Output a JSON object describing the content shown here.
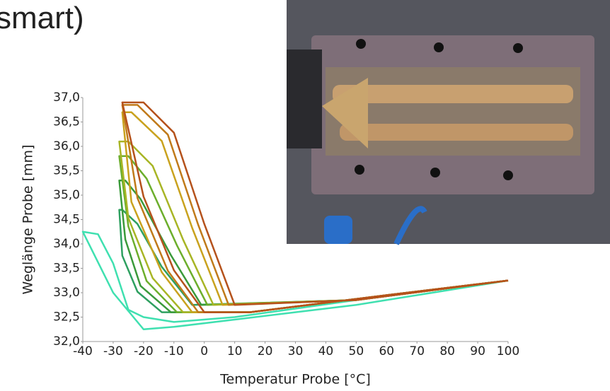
{
  "chart_data": {
    "type": "line",
    "title": "smart)",
    "xlabel": "Temperatur Probe [°C]",
    "ylabel": "Weglänge Probe [mm]",
    "xlim": [
      -40,
      100
    ],
    "xticks": [
      -40,
      -30,
      -20,
      -10,
      0,
      10,
      20,
      30,
      40,
      50,
      60,
      70,
      80,
      90,
      100
    ],
    "ylim": [
      32,
      37
    ],
    "yticks": [
      {
        "value": 32,
        "label": "32,0"
      },
      {
        "value": 32.5,
        "label": "32,5"
      },
      {
        "value": 33,
        "label": "33,0"
      },
      {
        "value": 33.5,
        "label": "33,5"
      },
      {
        "value": 34,
        "label": "34,0"
      },
      {
        "value": 34.5,
        "label": "34,5"
      },
      {
        "value": 35,
        "label": "35,0"
      },
      {
        "value": 35.5,
        "label": "35,5"
      },
      {
        "value": 36,
        "label": "36,0"
      },
      {
        "value": 36.5,
        "label": "36,5"
      },
      {
        "value": 37,
        "label": "37,0"
      }
    ],
    "series": [
      {
        "color": "#3fe0b0",
        "x": [
          100,
          50,
          10,
          -10,
          -20,
          -25,
          -30,
          -35,
          -40,
          -30,
          -20,
          -10,
          10,
          50,
          100
        ],
        "values": [
          33.25,
          32.85,
          32.5,
          32.4,
          32.5,
          32.65,
          33.6,
          34.2,
          34.25,
          33.0,
          32.25,
          32.3,
          32.45,
          32.75,
          33.25
        ]
      },
      {
        "color": "#2ea060",
        "x": [
          100,
          50,
          -4,
          -14,
          -22,
          -27,
          -28,
          -27,
          -22,
          -14,
          15,
          60,
          100
        ],
        "values": [
          33.25,
          32.85,
          32.75,
          33.53,
          34.41,
          34.7,
          34.7,
          33.76,
          33.02,
          32.6,
          32.6,
          32.95,
          33.25
        ]
      },
      {
        "color": "#3a9a3a",
        "x": [
          100,
          50,
          -1,
          -11,
          -21,
          -26,
          -28,
          -26,
          -21,
          -11,
          15,
          60,
          100
        ],
        "values": [
          33.25,
          32.85,
          32.75,
          33.77,
          34.92,
          35.3,
          35.3,
          34.09,
          33.14,
          32.6,
          32.6,
          32.95,
          33.25
        ]
      },
      {
        "color": "#6cae2c",
        "x": [
          100,
          50,
          1,
          -9,
          -19,
          -25,
          -28,
          -25,
          -19,
          -9,
          15,
          60,
          100
        ],
        "values": [
          33.25,
          32.85,
          32.75,
          33.97,
          35.34,
          35.8,
          35.8,
          34.36,
          33.24,
          32.6,
          32.6,
          32.95,
          33.25
        ]
      },
      {
        "color": "#a8b525",
        "x": [
          100,
          50,
          3,
          -7,
          -17,
          -25,
          -28,
          -25,
          -17,
          -7,
          15,
          60,
          100
        ],
        "values": [
          33.25,
          32.85,
          32.75,
          34.09,
          35.6,
          36.1,
          36.1,
          34.53,
          33.3,
          32.6,
          32.6,
          32.95,
          33.25
        ]
      },
      {
        "color": "#c9a21e",
        "x": [
          100,
          50,
          6,
          -4,
          -14,
          -24,
          -27,
          -24,
          -14,
          -4,
          15,
          60,
          100
        ],
        "values": [
          33.25,
          32.85,
          32.75,
          34.33,
          36.11,
          36.7,
          36.7,
          34.86,
          33.42,
          32.6,
          32.6,
          32.95,
          33.25
        ]
      },
      {
        "color": "#c07a1a",
        "x": [
          100,
          50,
          8,
          -2,
          -12,
          -22,
          -27,
          -22,
          -12,
          -2,
          15,
          60,
          100
        ],
        "values": [
          33.25,
          32.85,
          32.75,
          34.39,
          36.24,
          36.85,
          36.85,
          34.94,
          33.45,
          32.6,
          32.6,
          32.95,
          33.25
        ]
      },
      {
        "color": "#b5521c",
        "x": [
          100,
          50,
          10,
          0,
          -10,
          -20,
          -27,
          -20,
          -10,
          0,
          15,
          60,
          100
        ],
        "values": [
          33.25,
          32.85,
          32.75,
          34.41,
          36.28,
          36.9,
          36.9,
          34.97,
          33.46,
          32.6,
          32.6,
          32.95,
          33.25
        ]
      }
    ]
  }
}
